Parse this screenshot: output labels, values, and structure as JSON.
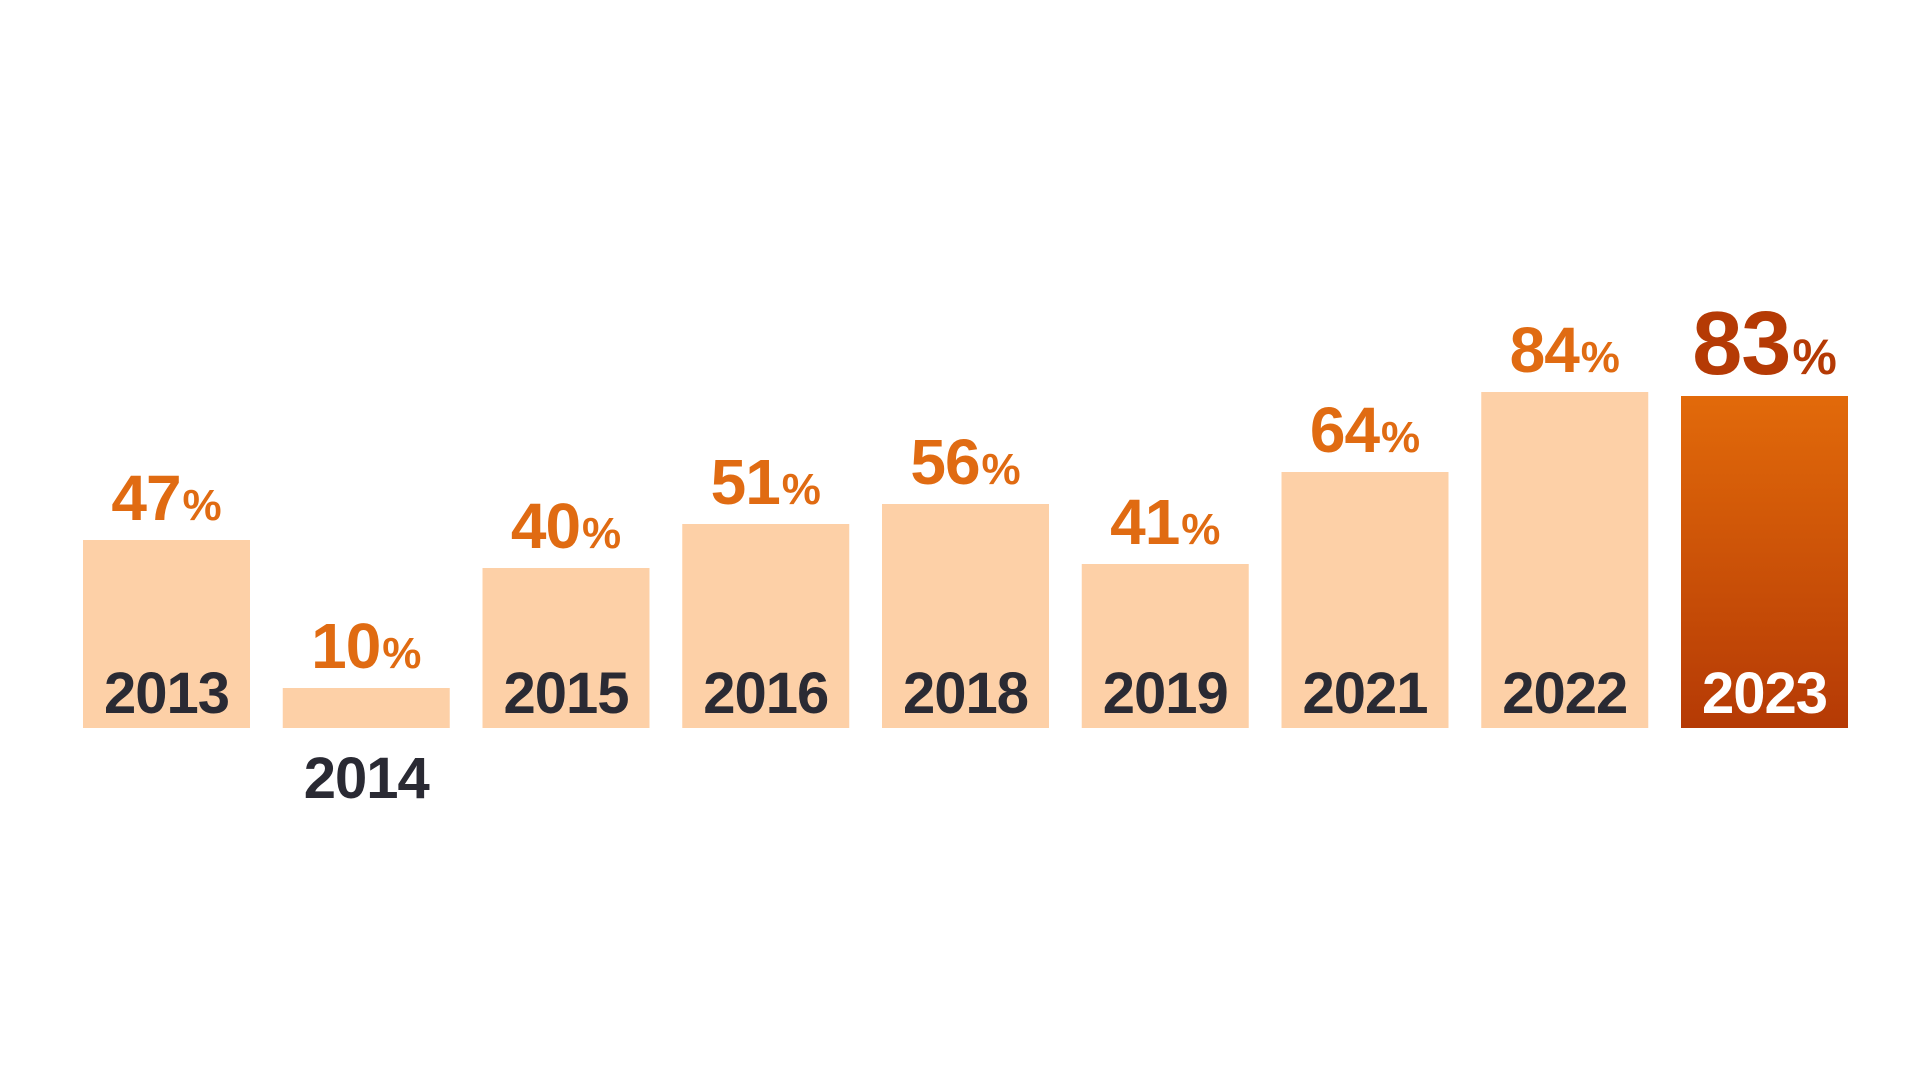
{
  "chart_data": {
    "type": "bar",
    "title": "",
    "xlabel": "",
    "ylabel": "",
    "ylim": [
      0,
      100
    ],
    "categories": [
      "2013",
      "2014",
      "2015",
      "2016",
      "2018",
      "2019",
      "2021",
      "2022",
      "2023"
    ],
    "values": [
      47,
      10,
      40,
      51,
      56,
      41,
      64,
      84,
      83
    ],
    "value_suffix": "%",
    "highlight_category": "2023",
    "grid": false,
    "legend": "none",
    "colors": {
      "bar": "#FDD0A7",
      "label": "#E06B12",
      "year_text": "#2A2A33",
      "highlight_top": "#E26A0A",
      "highlight_bottom": "#B53A05",
      "highlight_label": "#B53A05",
      "highlight_year_text": "#FFFFFF"
    }
  }
}
